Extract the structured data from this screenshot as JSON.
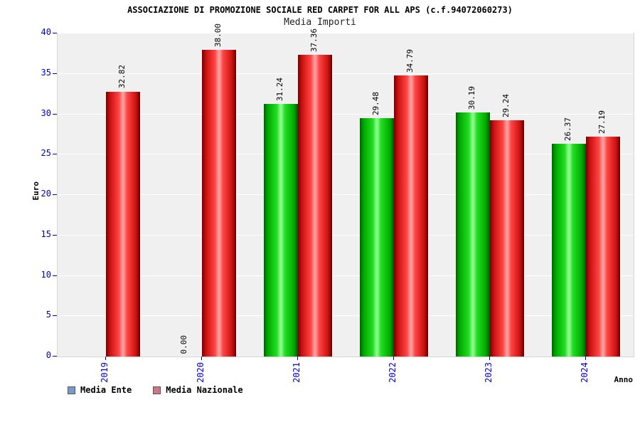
{
  "title": "ASSOCIAZIONE DI PROMOZIONE SOCIALE RED CARPET FOR ALL APS (c.f.94072060273)",
  "subtitle": "Media Importi",
  "ylabel": "Euro",
  "xlabel": "Anno",
  "colors": {
    "tick_label": "#0000cc",
    "plot_background": "#f0f0f0",
    "gridline": "#ffffff",
    "bar_green": "#00cc00",
    "bar_red": "#ee2222"
  },
  "chart_data": {
    "type": "bar",
    "categories": [
      "2019",
      "2020",
      "2021",
      "2022",
      "2023",
      "2024"
    ],
    "series": [
      {
        "name": "Media Ente",
        "color_class": "green",
        "legend_color": "#7799cc",
        "values": [
          null,
          0.0,
          31.24,
          29.48,
          30.19,
          26.37
        ]
      },
      {
        "name": "Media Nazionale",
        "color_class": "red",
        "legend_color": "#cc7788",
        "values": [
          32.82,
          38.0,
          37.36,
          34.79,
          29.24,
          27.19
        ]
      }
    ],
    "ylim": [
      0,
      40
    ],
    "ytick_step": 5,
    "grid": true,
    "legend_position": "bottom-left",
    "value_label_format": "2-decimals-vertical"
  }
}
